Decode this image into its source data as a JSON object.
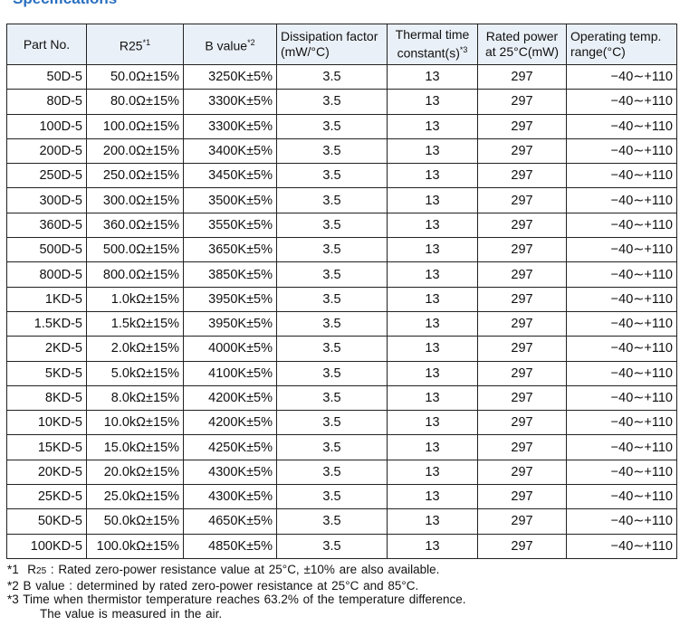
{
  "heading": "Specifications",
  "columns": [
    {
      "line1": "Part No.",
      "line2": "",
      "sup": ""
    },
    {
      "line1": "R25",
      "line2": "",
      "sup": "*1"
    },
    {
      "line1": "B value",
      "line2": "",
      "sup": "*2"
    },
    {
      "line1": "Dissipation factor",
      "line2": "(mW/°C)",
      "sup": ""
    },
    {
      "line1": "Thermal time",
      "line2": "constant(s)",
      "sup": "*3"
    },
    {
      "line1": "Rated power",
      "line2": "at 25°C(mW)",
      "sup": ""
    },
    {
      "line1": "Operating temp.",
      "line2": "range(°C)",
      "sup": ""
    }
  ],
  "rows": [
    [
      "50D-5",
      "50.0Ω±15%",
      "3250K±5%",
      "3.5",
      "13",
      "297",
      "−40∼+110"
    ],
    [
      "80D-5",
      "80.0Ω±15%",
      "3300K±5%",
      "3.5",
      "13",
      "297",
      "−40∼+110"
    ],
    [
      "100D-5",
      "100.0Ω±15%",
      "3300K±5%",
      "3.5",
      "13",
      "297",
      "−40∼+110"
    ],
    [
      "200D-5",
      "200.0Ω±15%",
      "3400K±5%",
      "3.5",
      "13",
      "297",
      "−40∼+110"
    ],
    [
      "250D-5",
      "250.0Ω±15%",
      "3450K±5%",
      "3.5",
      "13",
      "297",
      "−40∼+110"
    ],
    [
      "300D-5",
      "300.0Ω±15%",
      "3500K±5%",
      "3.5",
      "13",
      "297",
      "−40∼+110"
    ],
    [
      "360D-5",
      "360.0Ω±15%",
      "3550K±5%",
      "3.5",
      "13",
      "297",
      "−40∼+110"
    ],
    [
      "500D-5",
      "500.0Ω±15%",
      "3650K±5%",
      "3.5",
      "13",
      "297",
      "−40∼+110"
    ],
    [
      "800D-5",
      "800.0Ω±15%",
      "3850K±5%",
      "3.5",
      "13",
      "297",
      "−40∼+110"
    ],
    [
      "1KD-5",
      "1.0kΩ±15%",
      "3950K±5%",
      "3.5",
      "13",
      "297",
      "−40∼+110"
    ],
    [
      "1.5KD-5",
      "1.5kΩ±15%",
      "3950K±5%",
      "3.5",
      "13",
      "297",
      "−40∼+110"
    ],
    [
      "2KD-5",
      "2.0kΩ±15%",
      "4000K±5%",
      "3.5",
      "13",
      "297",
      "−40∼+110"
    ],
    [
      "5KD-5",
      "5.0kΩ±15%",
      "4100K±5%",
      "3.5",
      "13",
      "297",
      "−40∼+110"
    ],
    [
      "8KD-5",
      "8.0kΩ±15%",
      "4200K±5%",
      "3.5",
      "13",
      "297",
      "−40∼+110"
    ],
    [
      "10KD-5",
      "10.0kΩ±15%",
      "4200K±5%",
      "3.5",
      "13",
      "297",
      "−40∼+110"
    ],
    [
      "15KD-5",
      "15.0kΩ±15%",
      "4250K±5%",
      "3.5",
      "13",
      "297",
      "−40∼+110"
    ],
    [
      "20KD-5",
      "20.0kΩ±15%",
      "4300K±5%",
      "3.5",
      "13",
      "297",
      "−40∼+110"
    ],
    [
      "25KD-5",
      "25.0kΩ±15%",
      "4300K±5%",
      "3.5",
      "13",
      "297",
      "−40∼+110"
    ],
    [
      "50KD-5",
      "50.0kΩ±15%",
      "4650K±5%",
      "3.5",
      "13",
      "297",
      "−40∼+110"
    ],
    [
      "100KD-5",
      "100.0kΩ±15%",
      "4850K±5%",
      "3.5",
      "13",
      "297",
      "−40∼+110"
    ]
  ],
  "notes": {
    "n1_mark": "*1",
    "n1_term": "R",
    "n1_term_sub": "25",
    "n1_text": " : Rated zero-power resistance value at 25°C, ±10% are also available.",
    "n2": "*2  B value : determined by rated zero-power resistance at 25°C and 85°C.",
    "n3": "*3  Time when thermistor temperature reaches 63.2% of the temperature difference.",
    "n3_cont": "The value is measured in the air."
  },
  "colors": {
    "heading": "#2a6fc0",
    "header_bg": "#eaf0f7",
    "border": "#222222"
  }
}
